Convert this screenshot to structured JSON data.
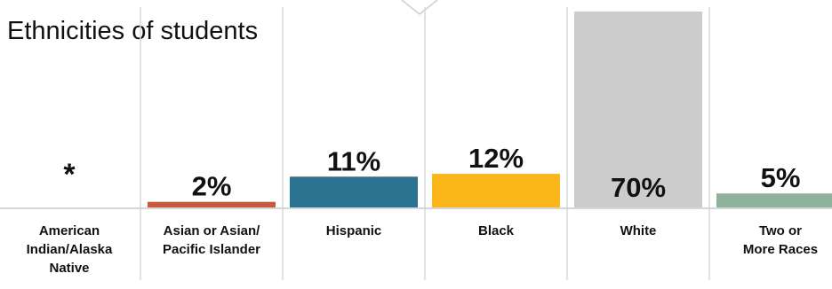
{
  "title": "Ethnicities of students",
  "chart_data": {
    "type": "bar",
    "title": "Ethnicities of students",
    "categories": [
      "American Indian/Alaska Native",
      "Asian or Asian/ Pacific Islander",
      "Hispanic",
      "Black",
      "White",
      "Two or More Races"
    ],
    "category_lines": [
      [
        "American",
        "Indian/Alaska",
        "Native"
      ],
      [
        "Asian or Asian/",
        "Pacific Islander"
      ],
      [
        "Hispanic"
      ],
      [
        "Black"
      ],
      [
        "White"
      ],
      [
        "Two or",
        "More Races"
      ]
    ],
    "values": [
      null,
      2,
      11,
      12,
      70,
      5
    ],
    "value_labels": [
      "*",
      "2%",
      "11%",
      "12%",
      "70%",
      "5%"
    ],
    "colors": [
      "#d9d9d9",
      "#c85a3c",
      "#2a7391",
      "#fbb619",
      "#cccccc",
      "#8fb39a"
    ],
    "ylim": [
      0,
      70
    ],
    "grid": true,
    "xlabel": "",
    "ylabel": ""
  }
}
